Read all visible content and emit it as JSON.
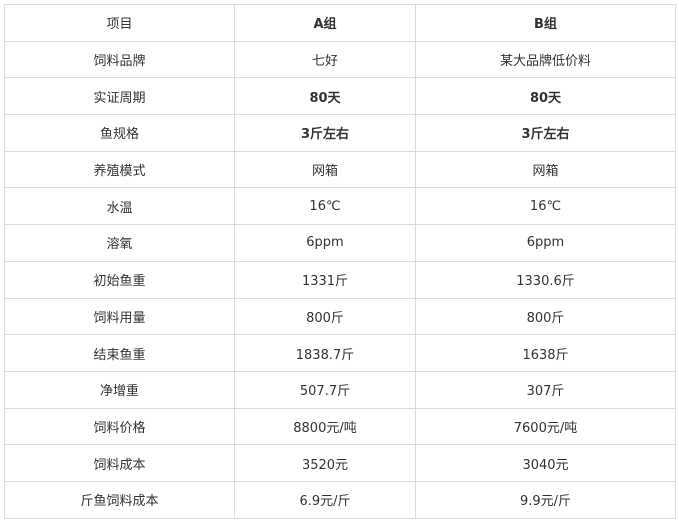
{
  "table": {
    "header": [
      "项目",
      "A组",
      "B组"
    ],
    "rows": [
      [
        "饲料品牌",
        "七好",
        "某大品牌低价料"
      ],
      [
        "实证周期",
        "80天",
        "80天"
      ],
      [
        "鱼规格",
        "3斤左右",
        "3斤左右"
      ],
      [
        "养殖模式",
        "网箱",
        "网箱"
      ],
      [
        "水温",
        "16℃",
        "16℃"
      ],
      [
        "溶氧",
        "6ppm",
        "6ppm"
      ],
      [
        "初始鱼重",
        "1331斤",
        "1330.6斤"
      ],
      [
        "饲料用量",
        "800斤",
        "800斤"
      ],
      [
        "结束鱼重",
        "1838.7斤",
        "1638斤"
      ],
      [
        "净增重",
        "507.7斤",
        "307斤"
      ],
      [
        "饲料价格",
        "8800元/吨",
        "7600元/吨"
      ],
      [
        "饲料成本",
        "3520元",
        "3040元"
      ],
      [
        "斤鱼饲料成本",
        "6.9元/斤",
        "9.9元/斤"
      ]
    ]
  }
}
